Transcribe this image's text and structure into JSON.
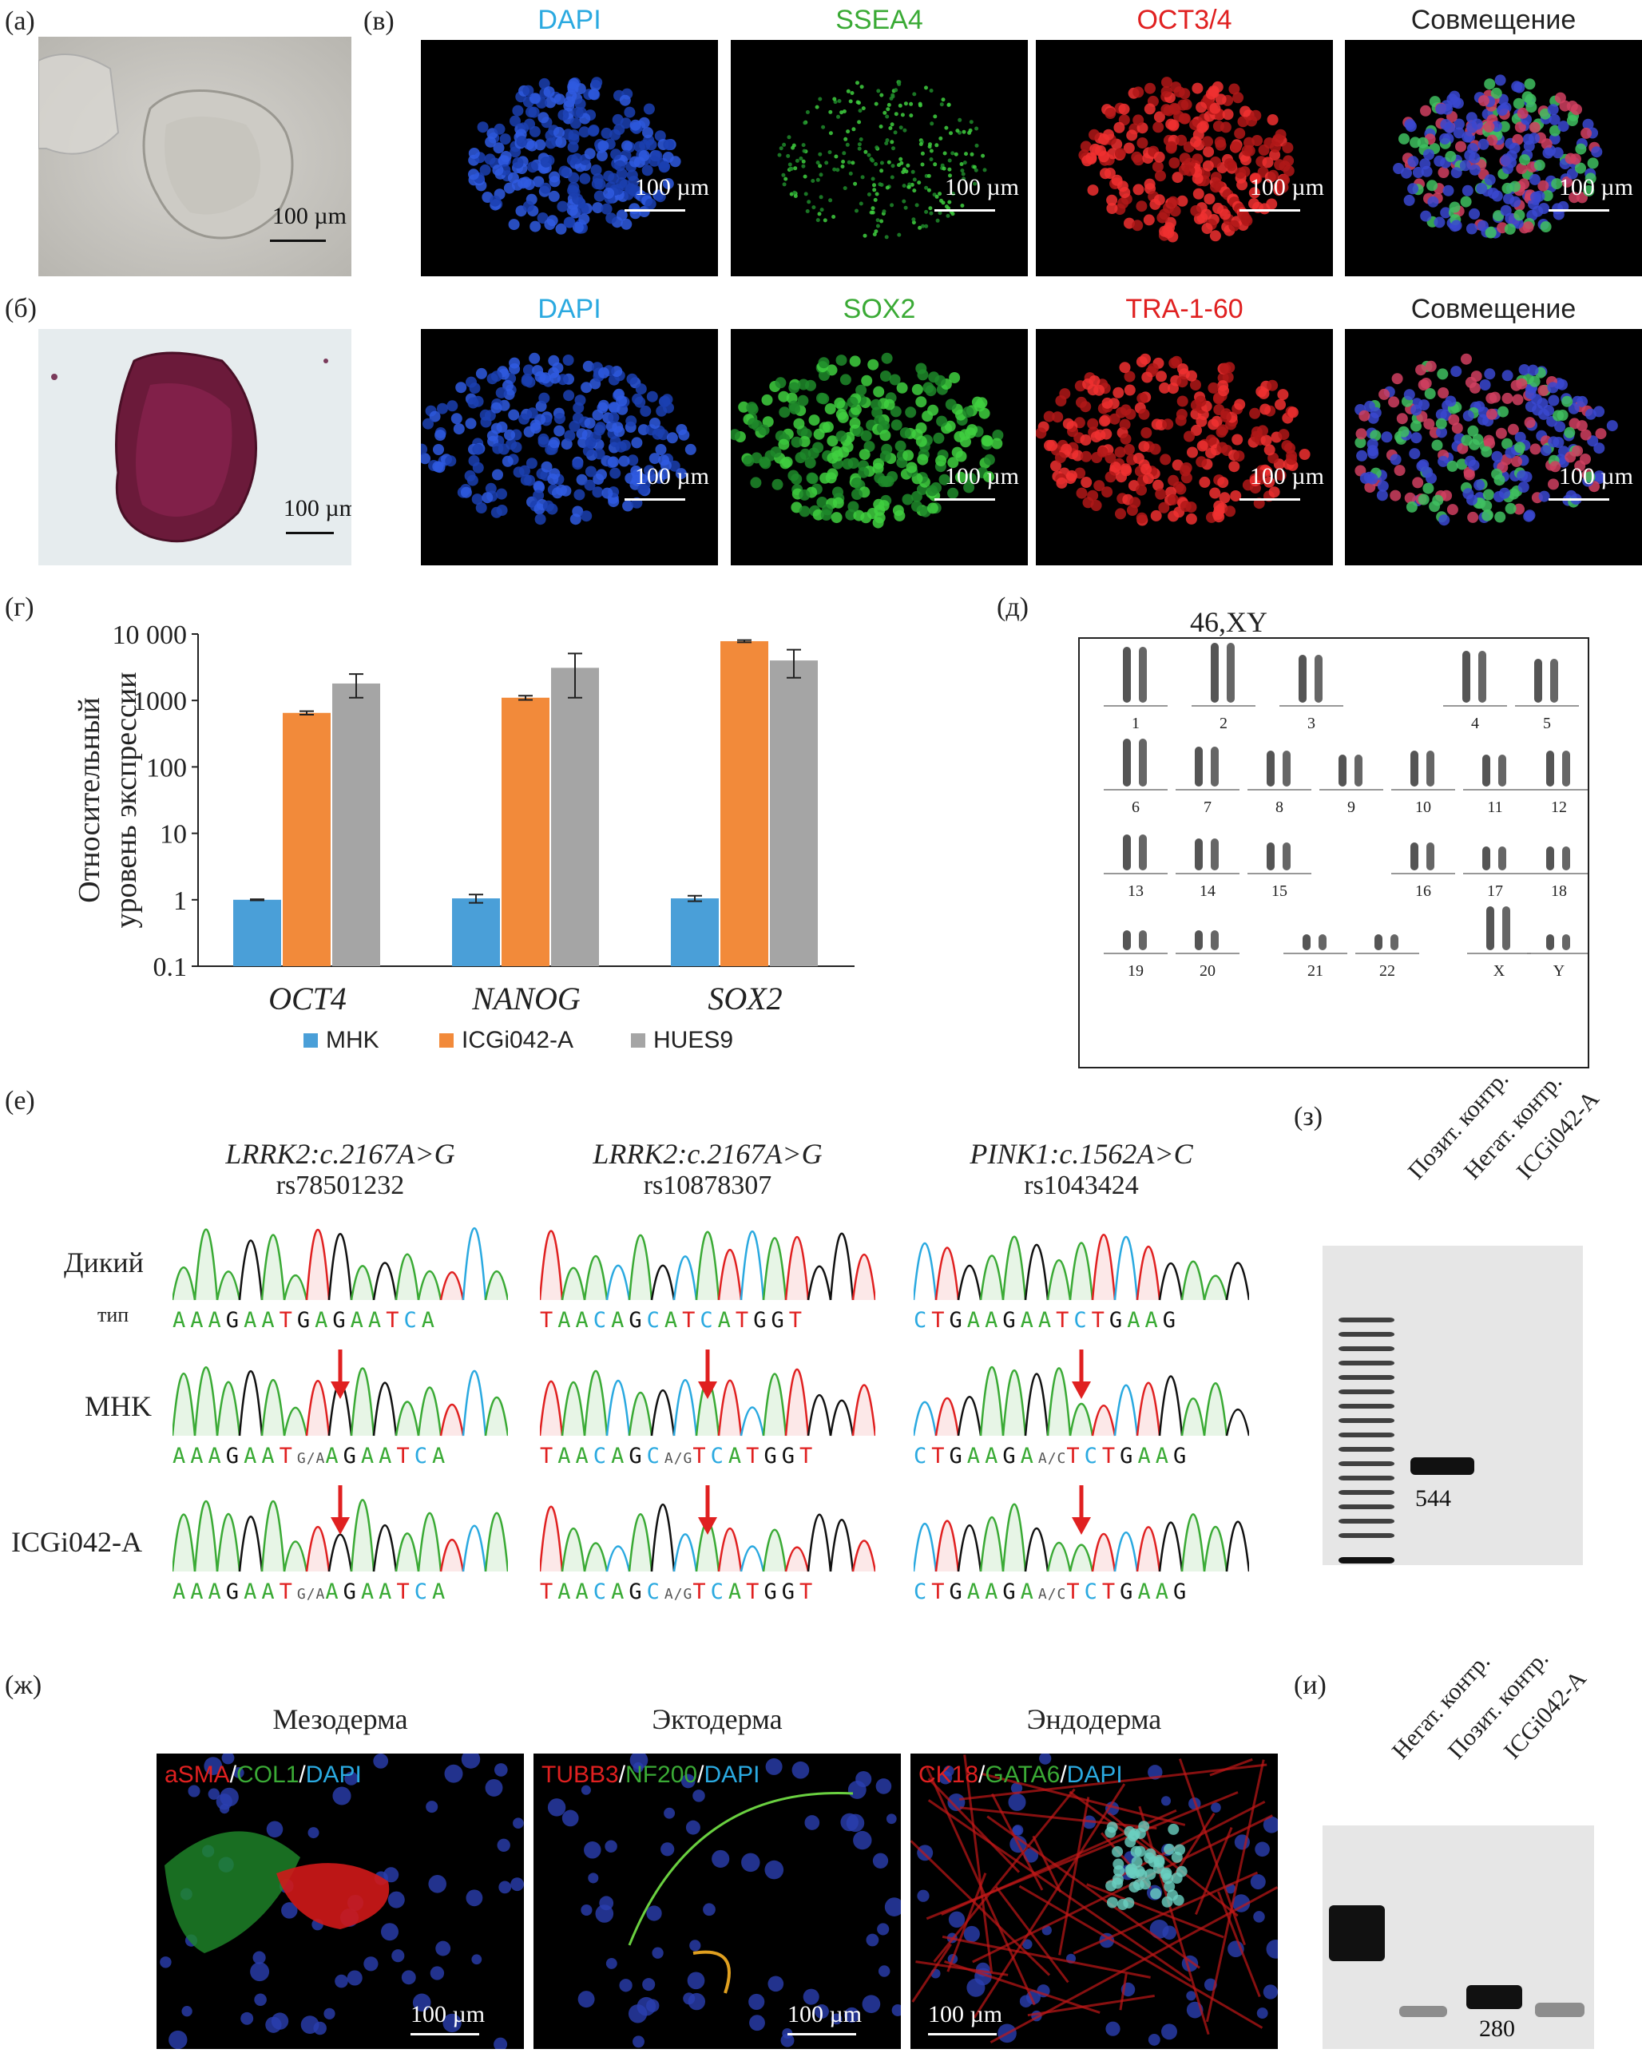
{
  "panels": {
    "a": "(а)",
    "b": "(б)",
    "v": "(в)",
    "g": "(г)",
    "d": "(д)",
    "e": "(е)",
    "z": "(з)",
    "zh": "(ж)",
    "i": "(и)"
  },
  "scale_label": "100 µm",
  "if_row1": [
    "DAPI",
    "SSEA4",
    "OCT3/4",
    "Совмещение"
  ],
  "if_row2": [
    "DAPI",
    "SOX2",
    "TRA-1-60",
    "Совмещение"
  ],
  "colors": {
    "dapi": "#2aa9e0",
    "green": "#3aaa35",
    "red": "#e02020",
    "mhk": "#4a9fd8",
    "icg": "#f28a3a",
    "hues": "#a5a5a5"
  },
  "chart_data": {
    "type": "bar",
    "ylabel": "Относительный уровень экспрессии",
    "ylabel_lines": [
      "Относительный",
      "уровень экспрессии"
    ],
    "yscale": "log",
    "ylim": [
      0.1,
      10000
    ],
    "yticks": [
      "0.1",
      "1",
      "10",
      "100",
      "1000",
      "10 000"
    ],
    "categories": [
      "OCT4",
      "NANOG",
      "SOX2"
    ],
    "series": [
      {
        "name": "MHK",
        "values": [
          1,
          1.05,
          1.05
        ],
        "err": [
          0.02,
          0.15,
          0.1
        ]
      },
      {
        "name": "ICGi042-A",
        "values": [
          650,
          1100,
          7800
        ],
        "err": [
          40,
          80,
          300
        ]
      },
      {
        "name": "HUES9",
        "values": [
          1800,
          3100,
          4000
        ],
        "err": [
          700,
          2000,
          1800
        ]
      }
    ],
    "legend": "bottom"
  },
  "karyotype": {
    "title": "46,XY",
    "labels": [
      "1",
      "2",
      "3",
      "4",
      "5",
      "6",
      "7",
      "8",
      "9",
      "10",
      "11",
      "12",
      "13",
      "14",
      "15",
      "16",
      "17",
      "18",
      "19",
      "20",
      "21",
      "22",
      "X",
      "Y"
    ]
  },
  "sequencing": {
    "columns": [
      {
        "gene": "LRRK2:c.2167A>G",
        "rs": "rs78501232",
        "wt": "AAAGAATGAGAATCA",
        "het_pre": "AAAGAAT",
        "het_mid": "G/A",
        "het_post": "AGAATCA"
      },
      {
        "gene": "LRRK2:c.2167A>G",
        "rs": "rs10878307",
        "wt": "TAACAGCATCATGGT",
        "het_pre": "TAACAGC",
        "het_mid": "A/G",
        "het_post": "TCATGGT"
      },
      {
        "gene": "PINK1:c.1562A>C",
        "rs": "rs1043424",
        "wt": "CTGAAGAATCTGAAG",
        "het_pre": "CTGAAGA",
        "het_mid": "A/C",
        "het_post": "TCTGAAG"
      }
    ],
    "rows": [
      "Дикий",
      "тип",
      "MHK",
      "ICGi042-A"
    ]
  },
  "gel_z": {
    "lanes": [
      "Позит. контр.",
      "Негат. контр.",
      "ICGi042-A"
    ],
    "band": "544"
  },
  "gel_i": {
    "lanes": [
      "Негат. контр.",
      "Позит. контр.",
      "ICGi042-A"
    ],
    "band": "280"
  },
  "germ": {
    "titles": [
      "Мезодерма",
      "Эктодерма",
      "Эндодерма"
    ],
    "meso": [
      "aSMA",
      "/",
      "COL1",
      "/",
      "DAPI"
    ],
    "ecto": [
      "TUBB3",
      "/",
      "NF200",
      "/",
      "DAPI"
    ],
    "endo": [
      "CK18",
      "/",
      "GATA6",
      "/",
      "DAPI"
    ]
  }
}
